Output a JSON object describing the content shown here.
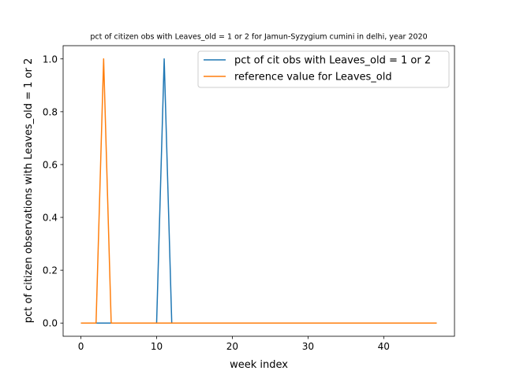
{
  "chart_data": {
    "type": "line",
    "title": "pct of citizen obs with Leaves_old = 1 or 2 for Jamun-Syzygium cumini in delhi, year 2020",
    "xlabel": "week index",
    "ylabel": "pct of citizen observations with Leaves_old = 1 or 2",
    "xlim": [
      -2.35,
      49.35
    ],
    "ylim": [
      -0.05,
      1.05
    ],
    "xticks": [
      0,
      10,
      20,
      30,
      40
    ],
    "yticks": [
      0.0,
      0.2,
      0.4,
      0.6,
      0.8,
      1.0
    ],
    "ytick_labels": [
      "0.0",
      "0.2",
      "0.4",
      "0.6",
      "0.8",
      "1.0"
    ],
    "grid": false,
    "legend_position": "upper right",
    "x_range": [
      0,
      47
    ],
    "series": [
      {
        "name": "pct of cit obs with Leaves_old = 1 or 2",
        "color": "#1f77b4",
        "points": [
          [
            0,
            0
          ],
          [
            10,
            0
          ],
          [
            11,
            1
          ],
          [
            12,
            0
          ],
          [
            47,
            0
          ]
        ]
      },
      {
        "name": "reference value for Leaves_old",
        "color": "#ff7f0e",
        "points": [
          [
            0,
            0
          ],
          [
            2,
            0
          ],
          [
            3,
            1
          ],
          [
            4,
            0
          ],
          [
            47,
            0
          ]
        ]
      }
    ]
  }
}
